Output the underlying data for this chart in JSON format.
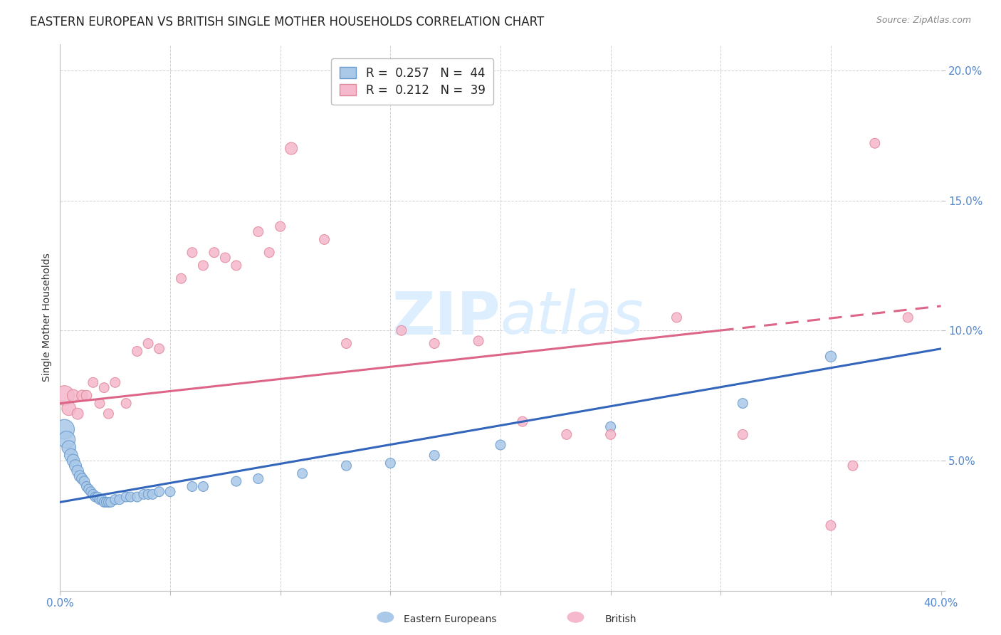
{
  "title": "EASTERN EUROPEAN VS BRITISH SINGLE MOTHER HOUSEHOLDS CORRELATION CHART",
  "source": "Source: ZipAtlas.com",
  "ylabel": "Single Mother Households",
  "watermark": "ZIPatlas",
  "xlim": [
    0.0,
    0.4
  ],
  "ylim": [
    0.0,
    0.21
  ],
  "blue_scatter": {
    "x": [
      0.002,
      0.003,
      0.004,
      0.005,
      0.006,
      0.007,
      0.008,
      0.009,
      0.01,
      0.011,
      0.012,
      0.013,
      0.014,
      0.015,
      0.016,
      0.017,
      0.018,
      0.019,
      0.02,
      0.021,
      0.022,
      0.023,
      0.025,
      0.027,
      0.03,
      0.032,
      0.035,
      0.038,
      0.04,
      0.042,
      0.045,
      0.05,
      0.06,
      0.065,
      0.08,
      0.09,
      0.11,
      0.13,
      0.15,
      0.17,
      0.2,
      0.25,
      0.31,
      0.35
    ],
    "y": [
      0.062,
      0.058,
      0.055,
      0.052,
      0.05,
      0.048,
      0.046,
      0.044,
      0.043,
      0.042,
      0.04,
      0.039,
      0.038,
      0.037,
      0.036,
      0.036,
      0.035,
      0.035,
      0.034,
      0.034,
      0.034,
      0.034,
      0.035,
      0.035,
      0.036,
      0.036,
      0.036,
      0.037,
      0.037,
      0.037,
      0.038,
      0.038,
      0.04,
      0.04,
      0.042,
      0.043,
      0.045,
      0.048,
      0.049,
      0.052,
      0.056,
      0.063,
      0.072,
      0.09
    ],
    "sizes": [
      400,
      300,
      200,
      180,
      160,
      150,
      140,
      130,
      120,
      110,
      100,
      100,
      100,
      100,
      100,
      100,
      100,
      100,
      100,
      100,
      100,
      100,
      100,
      100,
      100,
      100,
      100,
      100,
      100,
      100,
      100,
      100,
      100,
      100,
      100,
      100,
      100,
      100,
      100,
      100,
      100,
      100,
      100,
      120
    ]
  },
  "pink_scatter": {
    "x": [
      0.002,
      0.004,
      0.006,
      0.008,
      0.01,
      0.012,
      0.015,
      0.018,
      0.02,
      0.022,
      0.025,
      0.03,
      0.035,
      0.04,
      0.045,
      0.055,
      0.06,
      0.065,
      0.07,
      0.075,
      0.08,
      0.09,
      0.095,
      0.1,
      0.105,
      0.12,
      0.13,
      0.155,
      0.17,
      0.19,
      0.21,
      0.23,
      0.25,
      0.28,
      0.31,
      0.35,
      0.36,
      0.37,
      0.385
    ],
    "y": [
      0.075,
      0.07,
      0.075,
      0.068,
      0.075,
      0.075,
      0.08,
      0.072,
      0.078,
      0.068,
      0.08,
      0.072,
      0.092,
      0.095,
      0.093,
      0.12,
      0.13,
      0.125,
      0.13,
      0.128,
      0.125,
      0.138,
      0.13,
      0.14,
      0.17,
      0.135,
      0.095,
      0.1,
      0.095,
      0.096,
      0.065,
      0.06,
      0.06,
      0.105,
      0.06,
      0.025,
      0.048,
      0.172,
      0.105
    ],
    "sizes": [
      400,
      200,
      150,
      130,
      120,
      110,
      100,
      100,
      100,
      100,
      100,
      100,
      100,
      100,
      100,
      100,
      100,
      100,
      100,
      100,
      100,
      100,
      100,
      100,
      150,
      100,
      100,
      100,
      100,
      100,
      100,
      100,
      100,
      100,
      100,
      100,
      100,
      100,
      100
    ]
  },
  "blue_line": {
    "x0": 0.0,
    "x1": 0.4,
    "y0": 0.034,
    "y1": 0.093
  },
  "pink_line": {
    "x0": 0.0,
    "x1": 0.385,
    "y0": 0.072,
    "y1": 0.108
  },
  "blue_color": "#aac8e8",
  "pink_color": "#f5b8cc",
  "blue_edge_color": "#6699cc",
  "pink_edge_color": "#e08898",
  "blue_line_color": "#3366bb",
  "pink_line_color": "#dd6688",
  "bg_color": "#ffffff",
  "grid_color": "#cccccc",
  "title_fontsize": 12,
  "axis_label_fontsize": 10,
  "tick_fontsize": 11,
  "watermark_color": "#ddeeff",
  "watermark_fontsize": 60,
  "legend_blue_label_R": "R = ",
  "legend_blue_R_val": "0.257",
  "legend_blue_label_N": "   N = ",
  "legend_blue_N_val": "44",
  "legend_pink_label_R": "R = ",
  "legend_pink_R_val": "0.212",
  "legend_pink_label_N": "   N = ",
  "legend_pink_N_val": "39"
}
